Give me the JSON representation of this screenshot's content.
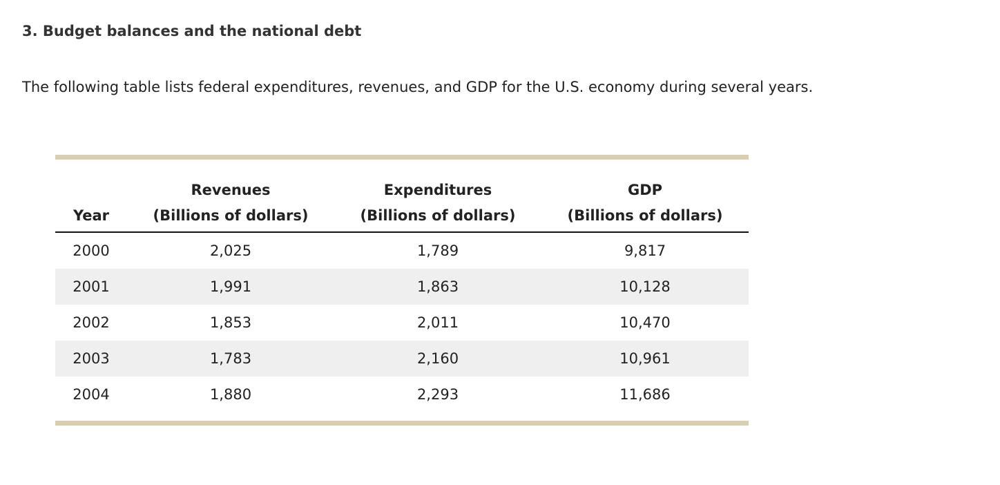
{
  "header": {
    "title": "3. Budget balances and the national debt"
  },
  "intro": "The following table lists federal expenditures, revenues, and GDP for the U.S. economy during several years.",
  "table": {
    "columns": [
      {
        "label": "Year"
      },
      {
        "label": "Revenues",
        "unit": "(Billions of dollars)"
      },
      {
        "label": "Expenditures",
        "unit": "(Billions of dollars)"
      },
      {
        "label": "GDP",
        "unit": "(Billions of dollars)"
      }
    ],
    "rows": [
      [
        "2000",
        "2,025",
        "1,789",
        "9,817"
      ],
      [
        "2001",
        "1,991",
        "1,863",
        "10,128"
      ],
      [
        "2002",
        "1,853",
        "2,011",
        "10,470"
      ],
      [
        "2003",
        "1,783",
        "2,160",
        "10,961"
      ],
      [
        "2004",
        "1,880",
        "2,293",
        "11,686"
      ]
    ]
  }
}
